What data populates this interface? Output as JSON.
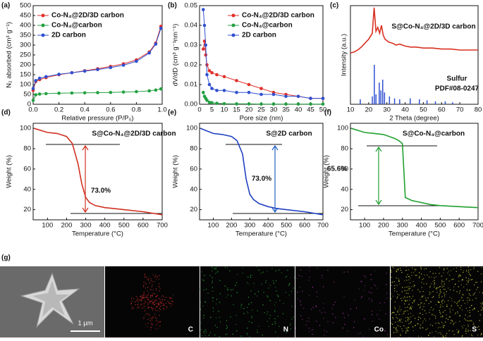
{
  "chart_data": [
    {
      "type": "line",
      "panel_label": "(a)",
      "xlabel": "Relative pressure (P/P₀)",
      "ylabel": "N₂ absorbed (cm³ g⁻¹)",
      "markers": true,
      "legend": "top-left",
      "x": [
        0,
        0.02,
        0.05,
        0.1,
        0.2,
        0.3,
        0.4,
        0.5,
        0.6,
        0.7,
        0.8,
        0.9,
        0.95,
        0.99
      ],
      "series": [
        {
          "name": "Co-N₄@2D/3D carbon",
          "color": "#e0302a",
          "values": [
            70,
            115,
            125,
            135,
            150,
            160,
            170,
            180,
            192,
            205,
            225,
            265,
            310,
            395
          ]
        },
        {
          "name": "Co-N₄@carbon",
          "color": "#22a040",
          "values": [
            20,
            48,
            52,
            54,
            56,
            57,
            58,
            59,
            60,
            62,
            64,
            68,
            72,
            78
          ]
        },
        {
          "name": "2D carbon",
          "color": "#3050d0",
          "values": [
            80,
            120,
            132,
            140,
            152,
            160,
            168,
            176,
            186,
            198,
            218,
            260,
            305,
            385
          ]
        }
      ],
      "xlim": [
        0,
        1
      ],
      "xticks": [
        {
          "value": 0,
          "label": "0.0"
        },
        {
          "value": 0.2,
          "label": "0.2"
        },
        {
          "value": 0.4,
          "label": "0.4"
        },
        {
          "value": 0.6,
          "label": "0.6"
        },
        {
          "value": 0.8,
          "label": "0.8"
        },
        {
          "value": 1,
          "label": "1.0"
        }
      ],
      "ylim": [
        0,
        500
      ],
      "yticks": [
        0,
        50,
        100,
        150,
        200,
        250,
        300,
        350,
        400,
        450,
        500
      ]
    },
    {
      "type": "line",
      "panel_label": "(b)",
      "xlabel": "Pore size (nm)",
      "ylabel": "dV/dD (cm³ g⁻¹nm⁻¹)",
      "markers": true,
      "legend": "top-right",
      "x": [
        1.5,
        2,
        2.5,
        3,
        4,
        5,
        7,
        10,
        15,
        20,
        25,
        30,
        35,
        40,
        45,
        50
      ],
      "series": [
        {
          "name": "Co-N₄@2D/3D carbon",
          "color": "#e0302a",
          "values": [
            0.028,
            0.032,
            0.025,
            0.02,
            0.017,
            0.016,
            0.015,
            0.014,
            0.012,
            0.01,
            0.008,
            0.006,
            0.005,
            0.004,
            0.003,
            0.003
          ]
        },
        {
          "name": "Co-N₄@carbon",
          "color": "#22a040",
          "values": [
            0.006,
            0.004,
            0.003,
            0.002,
            0.001,
            0.0008,
            0.0005,
            0.0003,
            0.0002,
            0.0002,
            0.0001,
            0.0001,
            0.0001,
            0.0001,
            0.0001,
            0.0001
          ]
        },
        {
          "name": "2D carbon",
          "color": "#3050d0",
          "values": [
            0.048,
            0.04,
            0.03,
            0.015,
            0.01,
            0.008,
            0.007,
            0.007,
            0.006,
            0.006,
            0.005,
            0.005,
            0.004,
            0.004,
            0.003,
            0.003
          ]
        }
      ],
      "xlim": [
        0,
        50
      ],
      "xticks": [
        0,
        5,
        10,
        15,
        20,
        25,
        30,
        35,
        40,
        45,
        50
      ],
      "ylim": [
        0,
        0.05
      ],
      "yticks": [
        {
          "value": 0,
          "label": "0.00"
        },
        {
          "value": 0.01,
          "label": "0.01"
        },
        {
          "value": 0.02,
          "label": "0.02"
        },
        {
          "value": 0.03,
          "label": "0.03"
        },
        {
          "value": 0.04,
          "label": "0.04"
        },
        {
          "value": 0.05,
          "label": "0.05"
        }
      ]
    },
    {
      "type": "line",
      "panel_label": "(c)",
      "xlabel": "2 Theta (degree)",
      "ylabel": "Intensity (a.u.)",
      "title": "S@Co-N₄@2D/3D carbon",
      "x": [
        10,
        12,
        14,
        16,
        18,
        20,
        22,
        23,
        24,
        25,
        26,
        27,
        28,
        29,
        31,
        33,
        35,
        37,
        40,
        43,
        46,
        50,
        55,
        60,
        65,
        70,
        75,
        80
      ],
      "series": [
        {
          "name": "S@Co-N₄@2D/3D carbon",
          "color": "#d83020",
          "values": [
            52,
            53,
            55,
            58,
            62,
            66,
            72,
            98,
            74,
            78,
            72,
            80,
            70,
            66,
            63,
            62,
            60,
            61,
            59,
            58,
            58,
            57,
            57,
            56,
            56,
            55,
            55,
            55
          ]
        }
      ],
      "reference": {
        "name": "Sulfur",
        "label": "PDF#08-0247",
        "color": "#3050d0",
        "x": [
          15.4,
          22,
          23.1,
          24,
          25.8,
          26.7,
          27.7,
          28.7,
          31.4,
          34.2,
          37,
          42.8,
          47.8,
          52,
          56.6,
          62,
          66
        ],
        "values": [
          5,
          8,
          40,
          10,
          22,
          14,
          25,
          12,
          8,
          6,
          5,
          6,
          5,
          4,
          3,
          3,
          2
        ]
      },
      "xlim": [
        10,
        80
      ],
      "xticks": [
        10,
        20,
        30,
        40,
        50,
        60,
        70,
        80
      ],
      "ylim": [
        0,
        100
      ]
    },
    {
      "type": "line",
      "panel_label": "(d)",
      "title": "S@Co-N₄@2D/3D carbon",
      "annotation": "73.0%",
      "xlabel": "Temperature (°C)",
      "ylabel": "Weight (%)",
      "x": [
        30,
        100,
        150,
        200,
        230,
        260,
        280,
        300,
        320,
        350,
        400,
        450,
        500,
        600,
        700
      ],
      "series": [
        {
          "name": "S@Co-N₄@2D/3D carbon",
          "color": "#d03020",
          "values": [
            100,
            96,
            95,
            92,
            85,
            65,
            45,
            32,
            27,
            24,
            22,
            21,
            20,
            18,
            15
          ]
        }
      ],
      "xlim": [
        25,
        700
      ],
      "xticks": [
        100,
        200,
        300,
        400,
        500,
        600,
        700
      ],
      "ylim": [
        10,
        105
      ],
      "yticks": [
        20,
        40,
        60,
        80,
        100
      ]
    },
    {
      "type": "line",
      "panel_label": "(e)",
      "title": "S@2D carbon",
      "annotation": "73.0%",
      "xlabel": "Temperature (°C)",
      "ylabel": "Weight (%)",
      "x": [
        30,
        100,
        150,
        200,
        230,
        260,
        280,
        300,
        320,
        350,
        400,
        450,
        500,
        600,
        700
      ],
      "series": [
        {
          "name": "S@2D carbon",
          "color": "#2040c0",
          "values": [
            100,
            95,
            94,
            92,
            88,
            75,
            50,
            35,
            30,
            26,
            23,
            21,
            20,
            18,
            15
          ]
        }
      ],
      "xlim": [
        25,
        700
      ],
      "xticks": [
        100,
        200,
        300,
        400,
        500,
        600,
        700
      ],
      "ylim": [
        10,
        105
      ],
      "yticks": [
        20,
        40,
        60,
        80,
        100
      ]
    },
    {
      "type": "line",
      "panel_label": "(f)",
      "title": "S@Co-N₄@carbon",
      "annotation": "65.6%",
      "xlabel": "Temperature (°C)",
      "ylabel": "Weight (%)",
      "x": [
        30,
        100,
        150,
        200,
        230,
        260,
        280,
        300,
        315,
        350,
        400,
        450,
        500,
        600,
        700
      ],
      "series": [
        {
          "name": "S@Co-N₄@carbon",
          "color": "#20a030",
          "values": [
            100,
            96,
            95,
            94,
            92,
            90,
            88,
            85,
            32,
            29,
            27,
            25,
            24,
            23,
            22
          ]
        }
      ],
      "xlim": [
        25,
        700
      ],
      "xticks": [
        100,
        200,
        300,
        400,
        500,
        600,
        700
      ],
      "ylim": [
        10,
        105
      ],
      "yticks": [
        20,
        40,
        60,
        80,
        100
      ]
    }
  ],
  "images": {
    "panel_label": "(g)",
    "scale_bar": "1 µm",
    "maps": [
      "C",
      "N",
      "Co",
      "S"
    ]
  }
}
